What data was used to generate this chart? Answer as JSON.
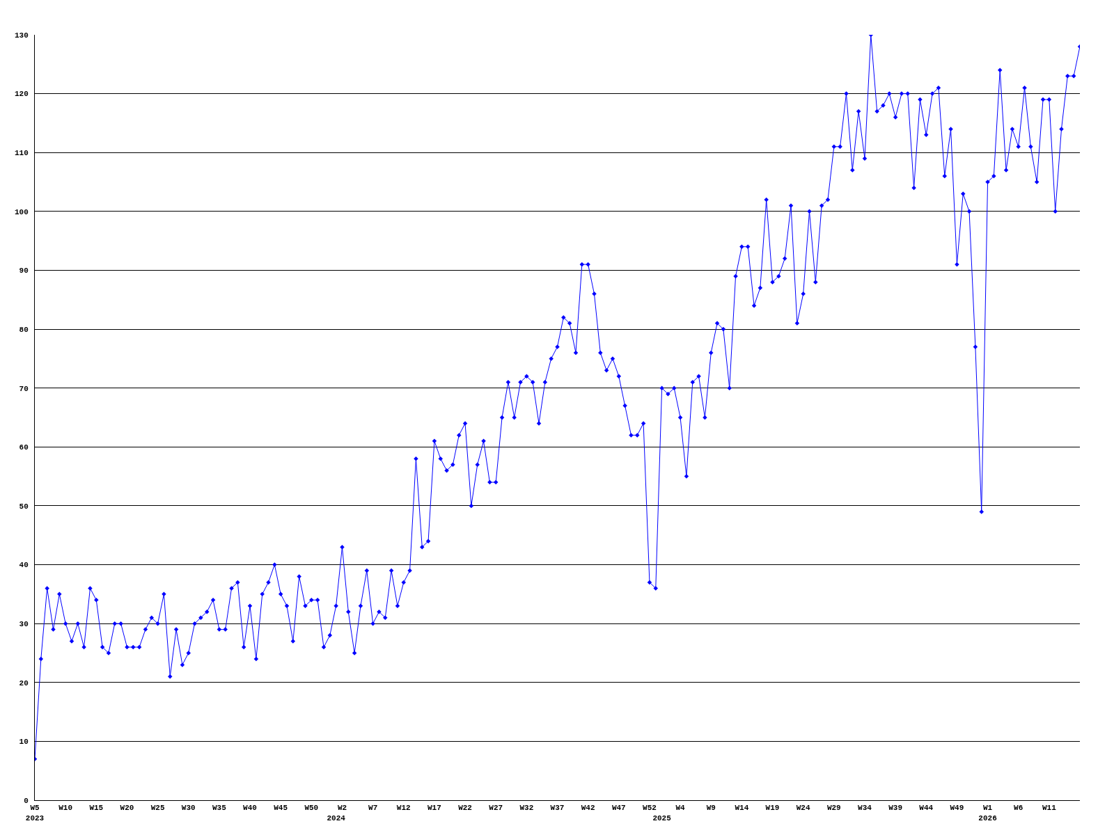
{
  "chart_data": {
    "type": "line",
    "categories": [
      "W5\n2023",
      null,
      null,
      null,
      null,
      "W10",
      null,
      null,
      null,
      null,
      "W15",
      null,
      null,
      null,
      null,
      "W20",
      null,
      null,
      null,
      null,
      "W25",
      null,
      null,
      null,
      null,
      "W30",
      null,
      null,
      null,
      null,
      "W35",
      null,
      null,
      null,
      null,
      "W40",
      null,
      null,
      null,
      null,
      "W45",
      null,
      null,
      null,
      null,
      "W50",
      null,
      null,
      null,
      "\n2024",
      "W2",
      null,
      null,
      null,
      null,
      "W7",
      null,
      null,
      null,
      null,
      "W12",
      null,
      null,
      null,
      null,
      "W17",
      null,
      null,
      null,
      null,
      "W22",
      null,
      null,
      null,
      null,
      "W27",
      null,
      null,
      null,
      null,
      "W32",
      null,
      null,
      null,
      null,
      "W37",
      null,
      null,
      null,
      null,
      "W42",
      null,
      null,
      null,
      null,
      "W47",
      null,
      null,
      null,
      null,
      "W52",
      null,
      "\n2025",
      null,
      null,
      "W4",
      null,
      null,
      null,
      null,
      "W9",
      null,
      null,
      null,
      null,
      "W14",
      null,
      null,
      null,
      null,
      "W19",
      null,
      null,
      null,
      null,
      "W24",
      null,
      null,
      null,
      null,
      "W29",
      null,
      null,
      null,
      null,
      "W34",
      null,
      null,
      null,
      null,
      "W39",
      null,
      null,
      null,
      null,
      "W44",
      null,
      null,
      null,
      null,
      "W49",
      null,
      null,
      null,
      null,
      "W1\n2026",
      null,
      null,
      null,
      null,
      "W6",
      null,
      null,
      null,
      null,
      "W11",
      null,
      null,
      null,
      null,
      null
    ],
    "series": [
      {
        "color": "#0000ff",
        "values": [
          7,
          24,
          36,
          29,
          35,
          30,
          27,
          30,
          26,
          36,
          34,
          26,
          25,
          30,
          30,
          26,
          26,
          26,
          29,
          31,
          30,
          35,
          21,
          29,
          23,
          25,
          30,
          31,
          32,
          34,
          29,
          29,
          36,
          37,
          26,
          33,
          24,
          35,
          37,
          40,
          35,
          33,
          27,
          38,
          33,
          34,
          34,
          26,
          28,
          33,
          43,
          32,
          25,
          33,
          39,
          30,
          32,
          31,
          39,
          33,
          37,
          39,
          58,
          43,
          44,
          61,
          58,
          56,
          57,
          62,
          64,
          50,
          57,
          61,
          54,
          54,
          65,
          71,
          65,
          71,
          72,
          71,
          64,
          71,
          75,
          77,
          82,
          81,
          76,
          91,
          91,
          86,
          76,
          73,
          75,
          72,
          67,
          62,
          62,
          64,
          37,
          36,
          70,
          69,
          70,
          65,
          55,
          71,
          72,
          65,
          76,
          81,
          80,
          70,
          89,
          94,
          94,
          84,
          87,
          102,
          88,
          89,
          92,
          101,
          81,
          86,
          100,
          88,
          101,
          102,
          111,
          111,
          120,
          107,
          117,
          109,
          130,
          117,
          118,
          120,
          116,
          120,
          120,
          104,
          119,
          113,
          120,
          121,
          106,
          114,
          91,
          103,
          100,
          77,
          49,
          105,
          106,
          124,
          107,
          114,
          111,
          121,
          111,
          105,
          119,
          119,
          100,
          114,
          123,
          123,
          128
        ]
      }
    ],
    "ylim": [
      0,
      130
    ],
    "yticks": [
      0,
      10,
      20,
      30,
      40,
      50,
      60,
      70,
      80,
      90,
      100,
      110,
      120,
      130
    ],
    "grid": "y",
    "marker": "diamond",
    "line_style": "solid"
  }
}
